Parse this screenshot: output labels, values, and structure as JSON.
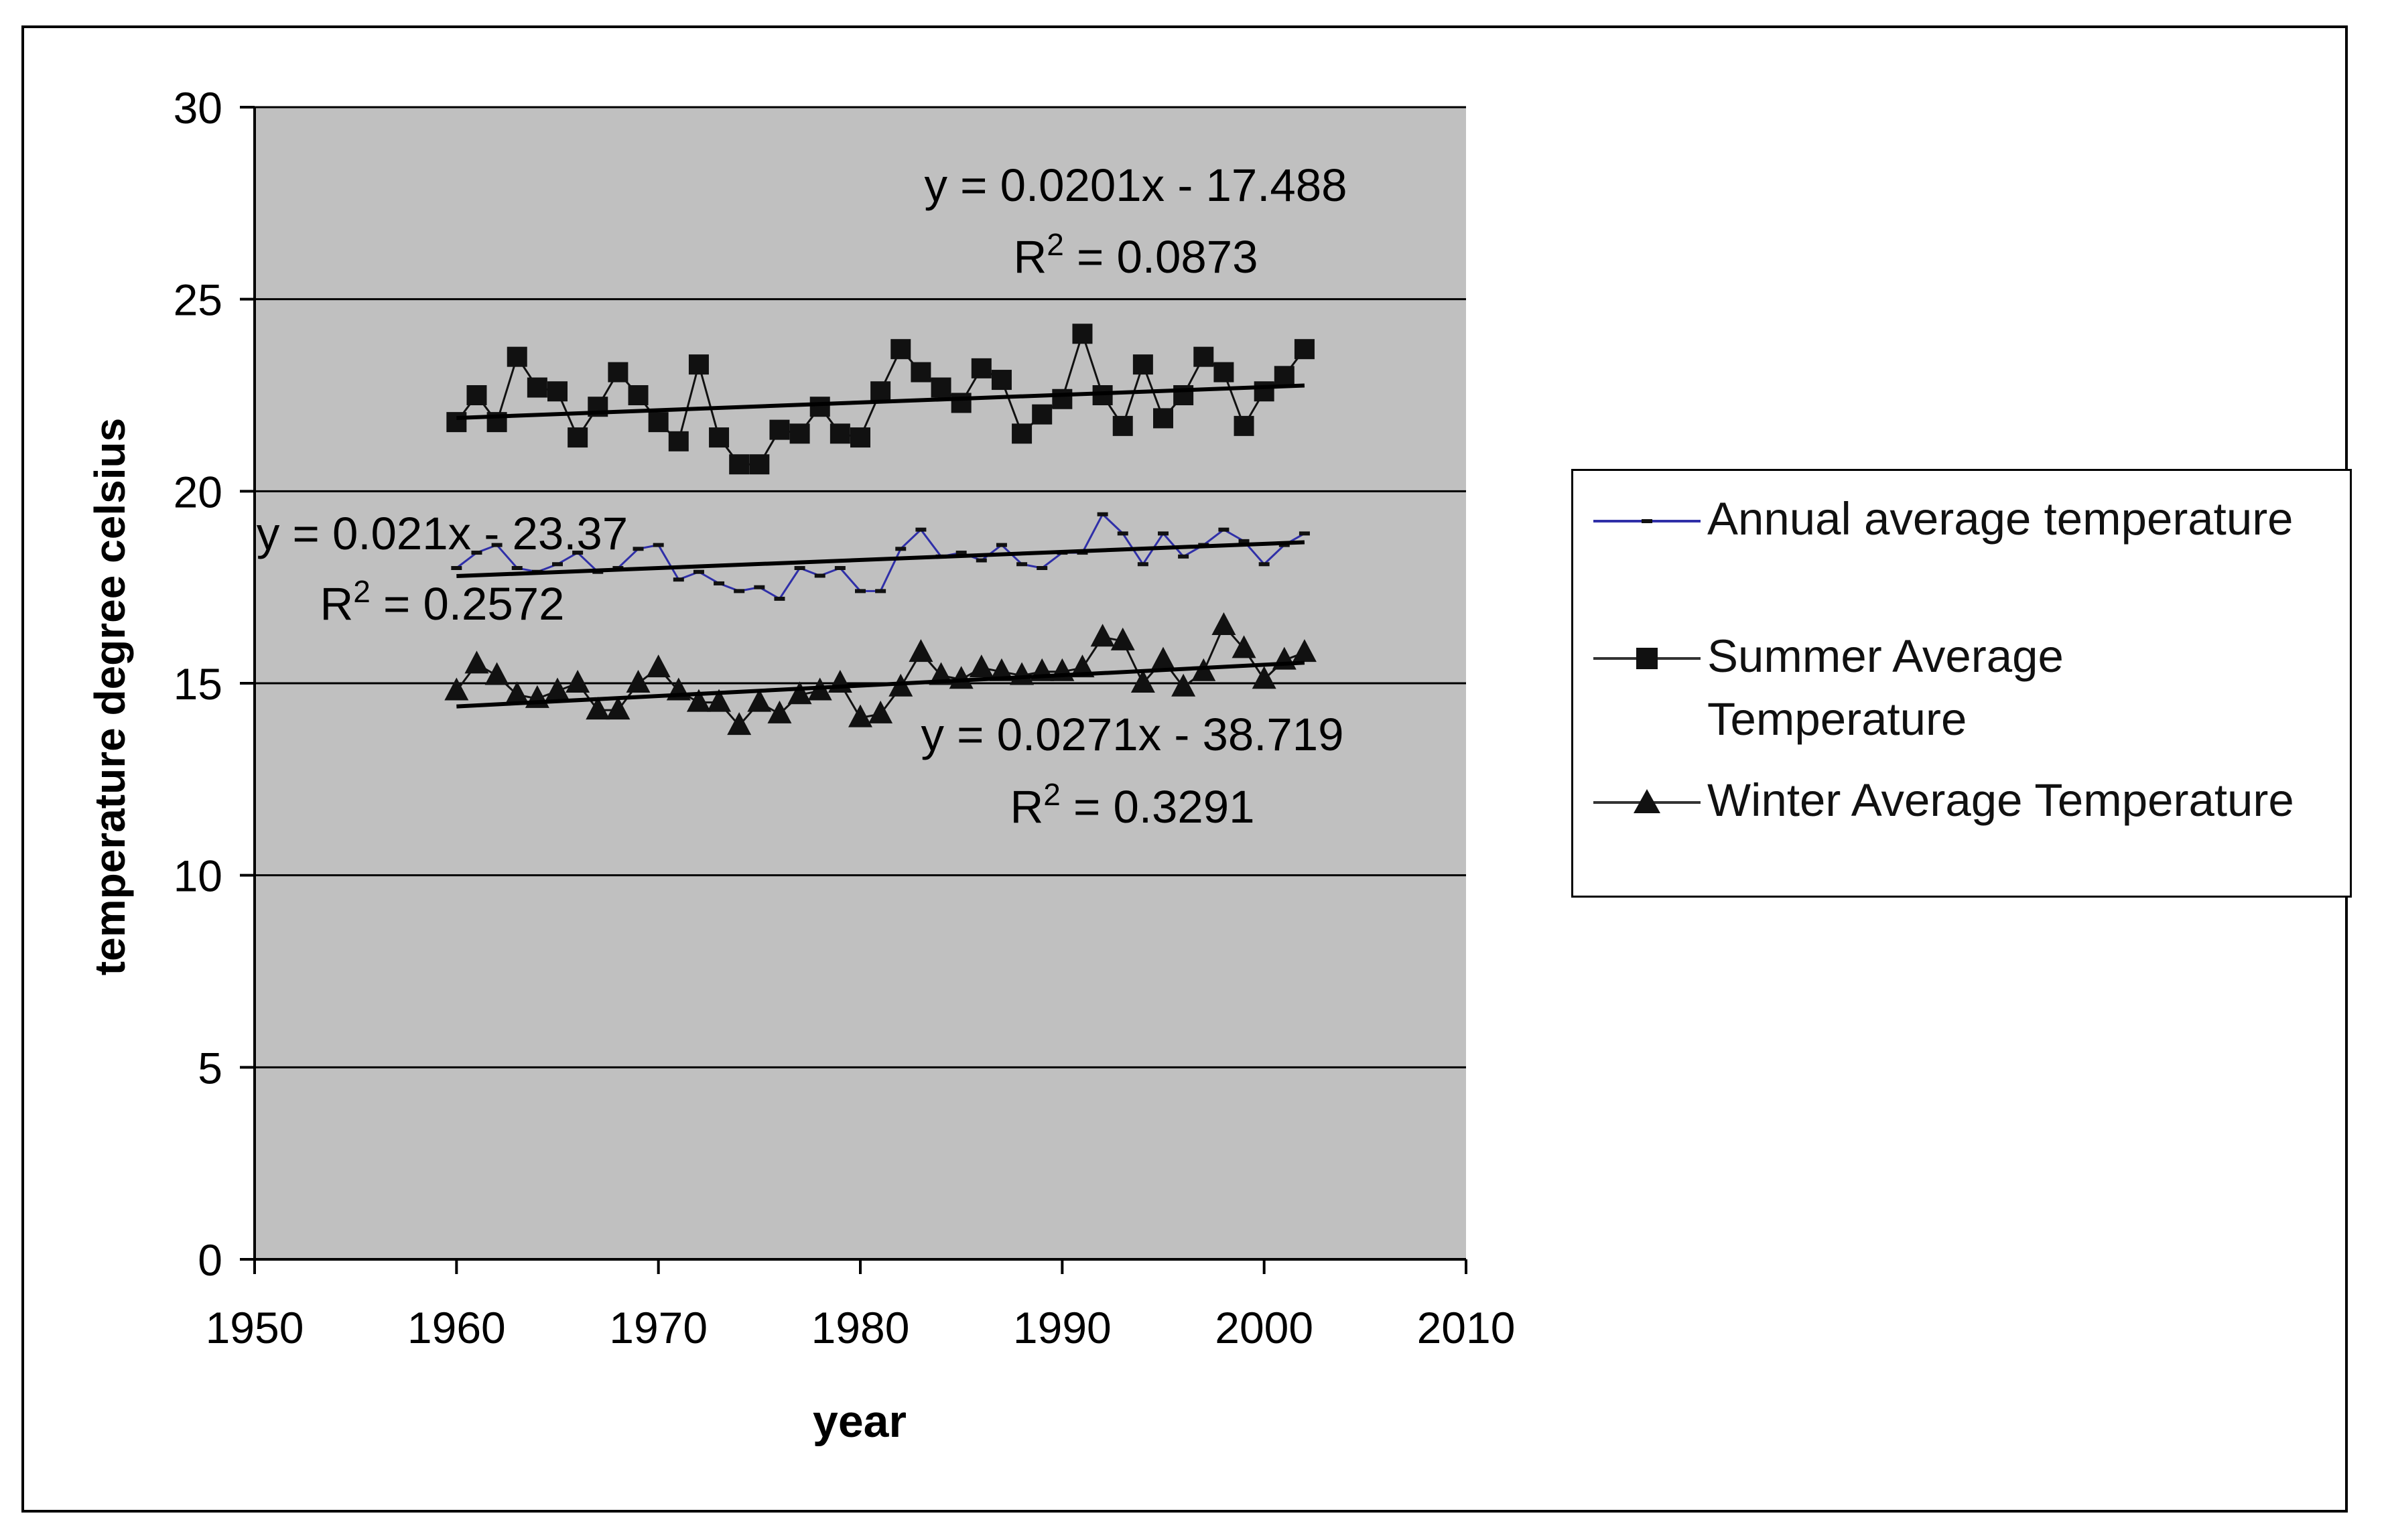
{
  "chart_data": {
    "type": "line",
    "title": "",
    "xlabel": "year",
    "ylabel": "temperature degree celsius",
    "xlim": [
      1950,
      2010
    ],
    "ylim": [
      0,
      30
    ],
    "x_ticks": [
      1950,
      1960,
      1970,
      1980,
      1990,
      2000,
      2010
    ],
    "y_ticks": [
      0,
      5,
      10,
      15,
      20,
      25,
      30
    ],
    "grid": "horizontal",
    "legend_position": "right",
    "colors": {
      "plot_background": "#c0c0c0",
      "annual": "#2f2fa8",
      "summer": "#111111",
      "winter": "#111111",
      "trend": "#000000"
    },
    "x": [
      1960,
      1961,
      1962,
      1963,
      1964,
      1965,
      1966,
      1967,
      1968,
      1969,
      1970,
      1971,
      1972,
      1973,
      1974,
      1975,
      1976,
      1977,
      1978,
      1979,
      1980,
      1981,
      1982,
      1983,
      1984,
      1985,
      1986,
      1987,
      1988,
      1989,
      1990,
      1991,
      1992,
      1993,
      1994,
      1995,
      1996,
      1997,
      1998,
      1999,
      2000,
      2001,
      2002
    ],
    "series": [
      {
        "name": "Annual average temperature",
        "marker": "dash",
        "values": [
          18.0,
          18.4,
          18.6,
          18.0,
          17.9,
          18.1,
          18.4,
          17.9,
          18.0,
          18.5,
          18.6,
          17.7,
          17.9,
          17.6,
          17.4,
          17.5,
          17.2,
          18.0,
          17.8,
          18.0,
          17.4,
          17.4,
          18.5,
          19.0,
          18.3,
          18.4,
          18.2,
          18.6,
          18.1,
          18.0,
          18.4,
          18.4,
          19.4,
          18.9,
          18.1,
          18.9,
          18.3,
          18.6,
          19.0,
          18.7,
          18.1,
          18.6,
          18.9
        ]
      },
      {
        "name": "Summer Average Temperature",
        "marker": "square",
        "values": [
          21.8,
          22.5,
          21.8,
          23.5,
          22.7,
          22.6,
          21.4,
          22.2,
          23.1,
          22.5,
          21.8,
          21.3,
          23.3,
          21.4,
          20.7,
          20.7,
          21.6,
          21.5,
          22.2,
          21.5,
          21.4,
          22.6,
          23.7,
          23.1,
          22.7,
          22.3,
          23.2,
          22.9,
          21.5,
          22.0,
          22.4,
          24.1,
          22.5,
          21.7,
          23.3,
          21.9,
          22.5,
          23.5,
          23.1,
          21.7,
          22.6,
          23.0,
          23.7
        ]
      },
      {
        "name": "Winter Average Temperature",
        "marker": "triangle",
        "values": [
          14.8,
          15.5,
          15.2,
          14.7,
          14.6,
          14.8,
          15.0,
          14.3,
          14.3,
          15.0,
          15.4,
          14.8,
          14.5,
          14.5,
          13.9,
          14.5,
          14.2,
          14.7,
          14.8,
          15.0,
          14.1,
          14.2,
          14.9,
          15.8,
          15.2,
          15.1,
          15.4,
          15.3,
          15.2,
          15.3,
          15.3,
          15.4,
          16.2,
          16.1,
          15.0,
          15.6,
          14.9,
          15.3,
          16.5,
          15.9,
          15.1,
          15.6,
          15.8
        ]
      }
    ],
    "trendlines": [
      {
        "series": "Summer Average Temperature",
        "slope": 0.0201,
        "intercept": -17.488,
        "equation": "y = 0.0201x - 17.488",
        "r2_prefix": "R",
        "r2_sup": "2",
        "r2_value": " = 0.0873"
      },
      {
        "series": "Annual average temperature",
        "slope": 0.021,
        "intercept": -23.37,
        "equation": "y = 0.021x - 23.37",
        "r2_prefix": "R",
        "r2_sup": "2",
        "r2_value": " = 0.2572"
      },
      {
        "series": "Winter Average Temperature",
        "slope": 0.0271,
        "intercept": -38.719,
        "equation": "y = 0.0271x - 38.719",
        "r2_prefix": "R",
        "r2_sup": "2",
        "r2_value": " = 0.3291"
      }
    ]
  },
  "legend": {
    "items": [
      {
        "label_line1": "Annual average temperature",
        "label_line2": ""
      },
      {
        "label_line1": "Summer Average",
        "label_line2": "Temperature"
      },
      {
        "label_line1": "Winter Average Temperature",
        "label_line2": ""
      }
    ]
  }
}
